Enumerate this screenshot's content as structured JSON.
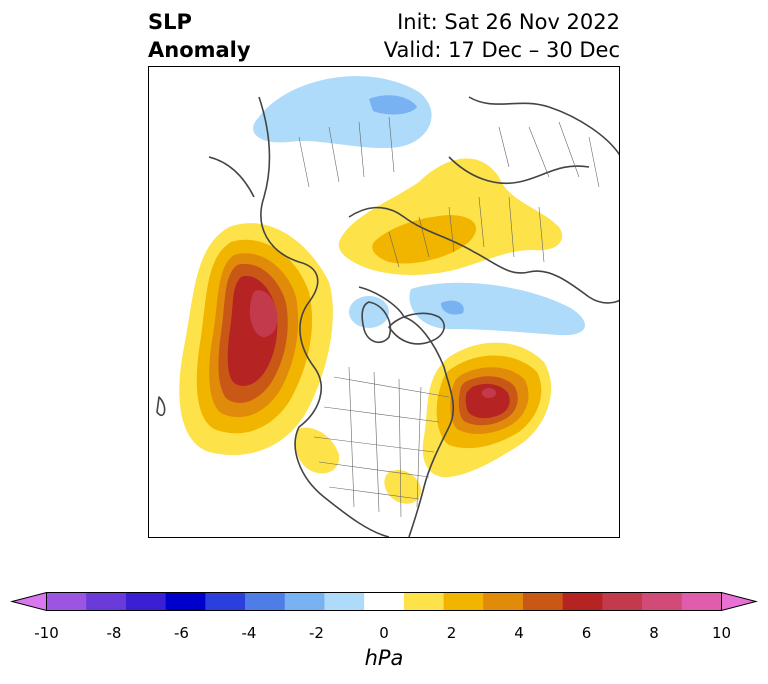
{
  "header": {
    "variable_line1": "SLP",
    "variable_line2": "Anomaly",
    "init_text": "Init: Sat 26 Nov 2022",
    "valid_text": "Valid: 17 Dec – 30 Dec"
  },
  "map": {
    "projection": "polar stereographic (North Pole)",
    "features": [
      "coastlines",
      "country borders",
      "state/province borders"
    ],
    "anomaly_centers": [
      {
        "name": "Gulf of Alaska high",
        "sign": "positive",
        "peak_hPa": 8
      },
      {
        "name": "North Atlantic high",
        "sign": "positive",
        "peak_hPa": 8
      },
      {
        "name": "Scandinavia / N. Russia high",
        "sign": "positive",
        "peak_hPa": 3
      },
      {
        "name": "Siberia low",
        "sign": "negative",
        "peak_hPa": -3
      },
      {
        "name": "Arctic/Laptev low",
        "sign": "negative",
        "peak_hPa": -3
      },
      {
        "name": "Beaufort low",
        "sign": "negative",
        "peak_hPa": -1.5
      }
    ]
  },
  "colorbar": {
    "unit_label": "hPa",
    "tick_labels": [
      "-10",
      "-8",
      "-6",
      "-4",
      "-2",
      "0",
      "2",
      "4",
      "6",
      "8",
      "10"
    ],
    "levels": [
      -10,
      -9,
      -8,
      -7,
      -6,
      -5,
      -4,
      -3,
      -2,
      -1,
      1,
      2,
      3,
      4,
      5,
      6,
      7,
      8,
      9,
      10
    ],
    "colors": [
      "#d977ee",
      "#9b55e0",
      "#6a3bd8",
      "#3b1fd5",
      "#0000cc",
      "#2b3fdc",
      "#4f7de6",
      "#78b2f2",
      "#aedbfa",
      "#ffffff",
      "#fde24a",
      "#f1b500",
      "#e08b0a",
      "#c95817",
      "#b52323",
      "#c23a4c",
      "#d24a77",
      "#df5dab",
      "#e871d6"
    ],
    "extend": "both"
  }
}
